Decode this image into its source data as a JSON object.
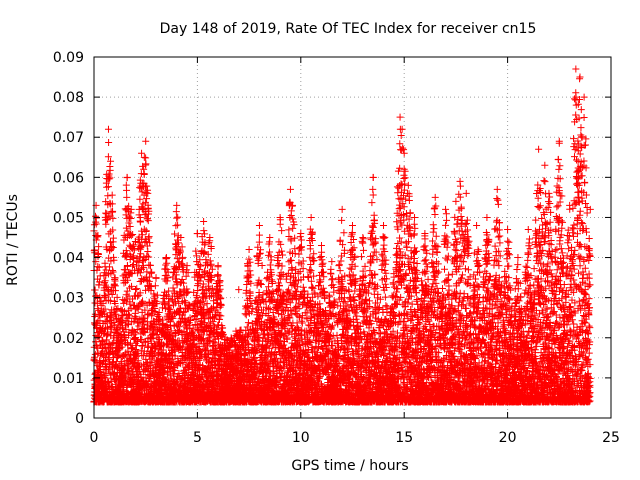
{
  "chart_data": {
    "type": "scatter",
    "title": "Day 148 of 2019, Rate Of TEC Index for receiver cn15",
    "xlabel": "GPS time / hours",
    "ylabel": "ROTI / TECUs",
    "xlim": [
      0,
      25
    ],
    "ylim": [
      0,
      0.09
    ],
    "xticks": [
      0,
      5,
      10,
      15,
      20,
      25
    ],
    "xtick_labels": [
      "0",
      "5",
      "10",
      "15",
      "20",
      "25"
    ],
    "yticks": [
      0,
      0.01,
      0.02,
      0.03,
      0.04,
      0.05,
      0.06,
      0.07,
      0.08,
      0.09
    ],
    "ytick_labels": [
      "0",
      "0.01",
      "0.02",
      "0.03",
      "0.04",
      "0.05",
      "0.06",
      "0.07",
      "0.08",
      "0.09"
    ],
    "grid": true,
    "marker": "+",
    "color": "#ff0000",
    "series": [
      {
        "name": "ROTI",
        "x": [
          0.1,
          0.2,
          0.5,
          0.7,
          0.8,
          1.0,
          1.3,
          1.6,
          1.8,
          2.0,
          2.3,
          2.4,
          2.5,
          2.6,
          3.0,
          3.5,
          4.0,
          4.2,
          4.5,
          5.0,
          5.3,
          5.6,
          6.0,
          6.5,
          7.0,
          7.5,
          8.0,
          8.5,
          9.0,
          9.5,
          9.6,
          10.0,
          10.5,
          11.0,
          11.5,
          12.0,
          12.5,
          13.0,
          13.5,
          14.0,
          14.5,
          14.8,
          14.9,
          15.0,
          15.2,
          15.5,
          16.0,
          16.5,
          17.0,
          17.5,
          17.7,
          18.0,
          18.5,
          19.0,
          19.5,
          20.0,
          20.5,
          21.0,
          21.5,
          21.8,
          22.0,
          22.5,
          23.0,
          23.3,
          23.5,
          23.7,
          24.0
        ],
        "y": [
          0.053,
          0.041,
          0.03,
          0.072,
          0.064,
          0.035,
          0.027,
          0.06,
          0.052,
          0.044,
          0.066,
          0.062,
          0.069,
          0.056,
          0.035,
          0.04,
          0.053,
          0.045,
          0.038,
          0.046,
          0.049,
          0.045,
          0.038,
          0.01,
          0.032,
          0.042,
          0.048,
          0.045,
          0.05,
          0.057,
          0.053,
          0.046,
          0.05,
          0.043,
          0.039,
          0.052,
          0.048,
          0.045,
          0.06,
          0.048,
          0.036,
          0.075,
          0.072,
          0.066,
          0.058,
          0.05,
          0.046,
          0.055,
          0.052,
          0.054,
          0.059,
          0.056,
          0.048,
          0.05,
          0.057,
          0.047,
          0.04,
          0.047,
          0.067,
          0.063,
          0.056,
          0.069,
          0.053,
          0.087,
          0.085,
          0.08,
          0.052
        ]
      }
    ]
  }
}
